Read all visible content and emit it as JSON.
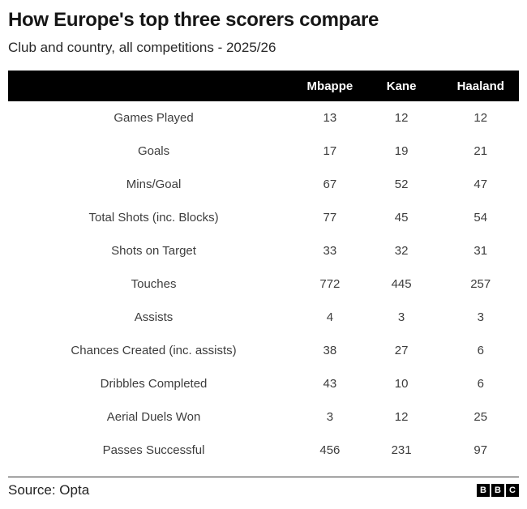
{
  "header": {
    "title": "How Europe's top three scorers compare",
    "subtitle": "Club and country, all competitions - 2025/26"
  },
  "table": {
    "label_header": "",
    "columns": [
      "Mbappe",
      "Kane",
      "Haaland"
    ],
    "rows": [
      {
        "label": "Games Played",
        "values": [
          "13",
          "12",
          "12"
        ]
      },
      {
        "label": "Goals",
        "values": [
          "17",
          "19",
          "21"
        ]
      },
      {
        "label": "Mins/Goal",
        "values": [
          "67",
          "52",
          "47"
        ]
      },
      {
        "label": "Total Shots (inc. Blocks)",
        "values": [
          "77",
          "45",
          "54"
        ]
      },
      {
        "label": "Shots on Target",
        "values": [
          "33",
          "32",
          "31"
        ]
      },
      {
        "label": "Touches",
        "values": [
          "772",
          "445",
          "257"
        ]
      },
      {
        "label": "Assists",
        "values": [
          "4",
          "3",
          "3"
        ]
      },
      {
        "label": "Chances Created (inc. assists)",
        "values": [
          "38",
          "27",
          "6"
        ]
      },
      {
        "label": "Dribbles Completed",
        "values": [
          "43",
          "10",
          "6"
        ]
      },
      {
        "label": "Aerial Duels Won",
        "values": [
          "3",
          "12",
          "25"
        ]
      },
      {
        "label": "Passes Successful",
        "values": [
          "456",
          "231",
          "97"
        ]
      }
    ]
  },
  "footer": {
    "source": "Source: Opta",
    "logo_letters": [
      "B",
      "B",
      "C"
    ]
  },
  "colors": {
    "header_bg": "#000000",
    "header_text": "#ffffff",
    "title_text": "#161616",
    "subtitle_text": "#282828",
    "body_text": "#3d3d3d"
  },
  "chart_data": {
    "type": "table",
    "title": "How Europe's top three scorers compare",
    "subtitle": "Club and country, all competitions - 2025/26",
    "source": "Source: Opta",
    "categories": [
      "Games Played",
      "Goals",
      "Mins/Goal",
      "Total Shots (inc. Blocks)",
      "Shots on Target",
      "Touches",
      "Assists",
      "Chances Created (inc. assists)",
      "Dribbles Completed",
      "Aerial Duels Won",
      "Passes Successful"
    ],
    "series": [
      {
        "name": "Mbappe",
        "values": [
          13,
          17,
          67,
          77,
          33,
          772,
          4,
          38,
          43,
          3,
          456
        ]
      },
      {
        "name": "Kane",
        "values": [
          12,
          19,
          52,
          45,
          32,
          445,
          3,
          27,
          10,
          12,
          231
        ]
      },
      {
        "name": "Haaland",
        "values": [
          12,
          21,
          47,
          54,
          31,
          257,
          3,
          6,
          6,
          25,
          97
        ]
      }
    ],
    "layout": {
      "grid": false,
      "legend_position": "top-header-row"
    }
  }
}
